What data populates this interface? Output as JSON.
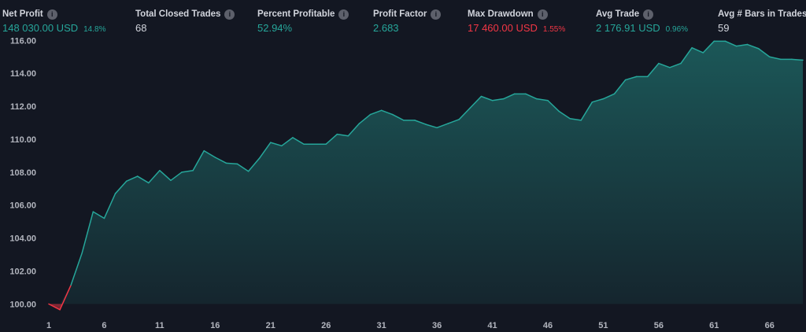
{
  "metrics": [
    {
      "label": "Net Profit",
      "value": "148 030.00 USD",
      "pct": "14.8%",
      "color": "#26a69a"
    },
    {
      "label": "Total Closed Trades",
      "value": "68",
      "pct": "",
      "color": "#d1d4dc"
    },
    {
      "label": "Percent Profitable",
      "value": "52.94%",
      "pct": "",
      "color": "#26a69a"
    },
    {
      "label": "Profit Factor",
      "value": "2.683",
      "pct": "",
      "color": "#26a69a"
    },
    {
      "label": "Max Drawdown",
      "value": "17 460.00 USD",
      "pct": "1.55%",
      "color": "#f23645"
    },
    {
      "label": "Avg Trade",
      "value": "2 176.91 USD",
      "pct": "0.96%",
      "color": "#26a69a"
    },
    {
      "label": "Avg # Bars in Trades",
      "value": "59",
      "pct": "",
      "color": "#d1d4dc"
    }
  ],
  "info_icon_glyph": "i",
  "chart_data": {
    "type": "area",
    "title": "",
    "xlabel": "",
    "ylabel": "",
    "ylim": [
      99.35,
      116.3
    ],
    "xlim": [
      1,
      69
    ],
    "baseline": 100.0,
    "y_ticks": [
      "100.00",
      "102.00",
      "104.00",
      "106.00",
      "108.00",
      "110.00",
      "112.00",
      "114.00",
      "116.00"
    ],
    "x_ticks": [
      "1",
      "6",
      "11",
      "16",
      "21",
      "26",
      "31",
      "36",
      "41",
      "46",
      "51",
      "56",
      "61",
      "66"
    ],
    "grid": false,
    "line_color": "#26a69a",
    "loss_color": "#f23645",
    "x": [
      1,
      2,
      3,
      4,
      5,
      6,
      7,
      8,
      9,
      10,
      11,
      12,
      13,
      14,
      15,
      16,
      17,
      18,
      19,
      20,
      21,
      22,
      23,
      24,
      25,
      26,
      27,
      28,
      29,
      30,
      31,
      32,
      33,
      34,
      35,
      36,
      37,
      38,
      39,
      40,
      41,
      42,
      43,
      44,
      45,
      46,
      47,
      48,
      49,
      50,
      51,
      52,
      53,
      54,
      55,
      56,
      57,
      58,
      59,
      60,
      61,
      62,
      63,
      64,
      65,
      66,
      67,
      68,
      69
    ],
    "values": [
      100.0,
      99.65,
      101.15,
      103.1,
      105.6,
      105.2,
      106.7,
      107.45,
      107.75,
      107.35,
      108.1,
      107.5,
      108.0,
      108.1,
      109.3,
      108.9,
      108.55,
      108.5,
      108.05,
      108.85,
      109.8,
      109.6,
      110.1,
      109.7,
      109.7,
      109.7,
      110.3,
      110.2,
      110.95,
      111.5,
      111.75,
      111.5,
      111.15,
      111.15,
      110.9,
      110.7,
      110.95,
      111.2,
      111.9,
      112.6,
      112.35,
      112.45,
      112.75,
      112.75,
      112.45,
      112.35,
      111.7,
      111.25,
      111.15,
      112.25,
      112.45,
      112.75,
      113.6,
      113.8,
      113.8,
      114.6,
      114.35,
      114.6,
      115.55,
      115.25,
      115.95,
      115.95,
      115.65,
      115.75,
      115.5,
      115.0,
      114.85,
      114.85,
      114.8
    ]
  }
}
